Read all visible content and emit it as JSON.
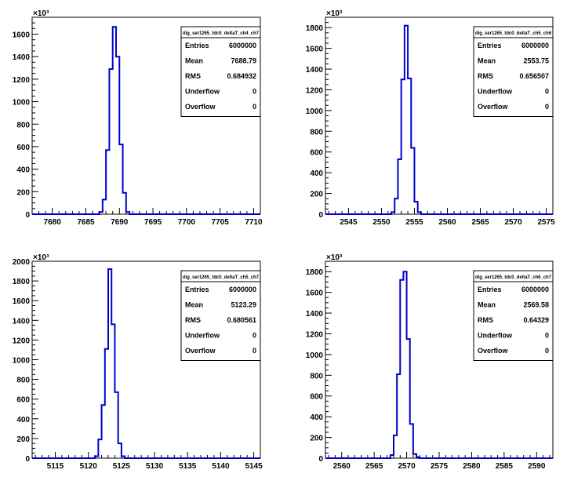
{
  "colors": {
    "histogram": "#0000cc",
    "frame": "#000000",
    "background": "#ffffff"
  },
  "chart_data": [
    {
      "type": "bar",
      "title": "dig_ser1265_tdc0_deltaT_ch4_ch7",
      "exponent_label": "×10³",
      "xlim": [
        7677,
        7711
      ],
      "ylim": [
        0,
        1750
      ],
      "x_ticks": [
        7680,
        7685,
        7690,
        7695,
        7700,
        7705,
        7710
      ],
      "y_ticks": [
        0,
        200,
        400,
        600,
        800,
        1000,
        1200,
        1400,
        1600
      ],
      "bin_width": 0.5,
      "bins": [
        {
          "x": 7687.0,
          "y": 20
        },
        {
          "x": 7687.5,
          "y": 130
        },
        {
          "x": 7688.0,
          "y": 570
        },
        {
          "x": 7688.5,
          "y": 1290
        },
        {
          "x": 7689.0,
          "y": 1665
        },
        {
          "x": 7689.5,
          "y": 1400
        },
        {
          "x": 7690.0,
          "y": 620
        },
        {
          "x": 7690.5,
          "y": 190
        },
        {
          "x": 7691.0,
          "y": 20
        }
      ],
      "stats": [
        {
          "label": "Entries",
          "value": "6000000"
        },
        {
          "label": "Mean",
          "value": "7688.79"
        },
        {
          "label": "RMS",
          "value": "0.684932"
        },
        {
          "label": "Underflow",
          "value": "0"
        },
        {
          "label": "Overflow",
          "value": "0"
        }
      ]
    },
    {
      "type": "bar",
      "title": "dig_ser1265_tdc0_deltaT_ch5_ch6",
      "exponent_label": "×10³",
      "xlim": [
        2541.5,
        2576
      ],
      "ylim": [
        0,
        1900
      ],
      "x_ticks": [
        2545,
        2550,
        2555,
        2560,
        2565,
        2570,
        2575
      ],
      "y_ticks": [
        0,
        200,
        400,
        600,
        800,
        1000,
        1200,
        1400,
        1600,
        1800
      ],
      "bin_width": 0.5,
      "bins": [
        {
          "x": 2551.5,
          "y": 20
        },
        {
          "x": 2552.0,
          "y": 150
        },
        {
          "x": 2552.5,
          "y": 530
        },
        {
          "x": 2553.0,
          "y": 1300
        },
        {
          "x": 2553.5,
          "y": 1820
        },
        {
          "x": 2554.0,
          "y": 1310
        },
        {
          "x": 2554.5,
          "y": 640
        },
        {
          "x": 2555.0,
          "y": 120
        },
        {
          "x": 2555.5,
          "y": 20
        }
      ],
      "stats": [
        {
          "label": "Entries",
          "value": "6000000"
        },
        {
          "label": "Mean",
          "value": "2553.75"
        },
        {
          "label": "RMS",
          "value": "0.656507"
        },
        {
          "label": "Underflow",
          "value": "0"
        },
        {
          "label": "Overflow",
          "value": "0"
        }
      ]
    },
    {
      "type": "bar",
      "title": "dig_ser1265_tdc0_deltaT_ch5_ch7",
      "exponent_label": "×10³",
      "xlim": [
        5111.5,
        5146
      ],
      "ylim": [
        0,
        2000
      ],
      "x_ticks": [
        5115,
        5120,
        5125,
        5130,
        5135,
        5140,
        5145
      ],
      "y_ticks": [
        0,
        200,
        400,
        600,
        800,
        1000,
        1200,
        1400,
        1600,
        1800,
        2000
      ],
      "bin_width": 0.5,
      "bins": [
        {
          "x": 5121.0,
          "y": 20
        },
        {
          "x": 5121.5,
          "y": 190
        },
        {
          "x": 5122.0,
          "y": 540
        },
        {
          "x": 5122.5,
          "y": 1110
        },
        {
          "x": 5123.0,
          "y": 1920
        },
        {
          "x": 5123.5,
          "y": 1360
        },
        {
          "x": 5124.0,
          "y": 670
        },
        {
          "x": 5124.5,
          "y": 150
        },
        {
          "x": 5125.0,
          "y": 20
        }
      ],
      "stats": [
        {
          "label": "Entries",
          "value": "6000000"
        },
        {
          "label": "Mean",
          "value": "5123.29"
        },
        {
          "label": "RMS",
          "value": "0.680561"
        },
        {
          "label": "Underflow",
          "value": "0"
        },
        {
          "label": "Overflow",
          "value": "0"
        }
      ]
    },
    {
      "type": "bar",
      "title": "dig_ser1265_tdc0_deltaT_ch6_ch7",
      "exponent_label": "×10³",
      "xlim": [
        2557.5,
        2592.5
      ],
      "ylim": [
        0,
        1900
      ],
      "x_ticks": [
        2560,
        2565,
        2570,
        2575,
        2580,
        2585,
        2590
      ],
      "y_ticks": [
        0,
        200,
        400,
        600,
        800,
        1000,
        1200,
        1400,
        1600,
        1800
      ],
      "bin_width": 0.5,
      "bins": [
        {
          "x": 2567.5,
          "y": 30
        },
        {
          "x": 2568.0,
          "y": 220
        },
        {
          "x": 2568.5,
          "y": 810
        },
        {
          "x": 2569.0,
          "y": 1720
        },
        {
          "x": 2569.5,
          "y": 1800
        },
        {
          "x": 2570.0,
          "y": 1150
        },
        {
          "x": 2570.5,
          "y": 330
        },
        {
          "x": 2571.0,
          "y": 40
        },
        {
          "x": 2571.5,
          "y": 10
        }
      ],
      "stats": [
        {
          "label": "Entries",
          "value": "6000000"
        },
        {
          "label": "Mean",
          "value": "2569.58"
        },
        {
          "label": "RMS",
          "value": "0.64329"
        },
        {
          "label": "Underflow",
          "value": "0"
        },
        {
          "label": "Overflow",
          "value": "0"
        }
      ]
    }
  ]
}
